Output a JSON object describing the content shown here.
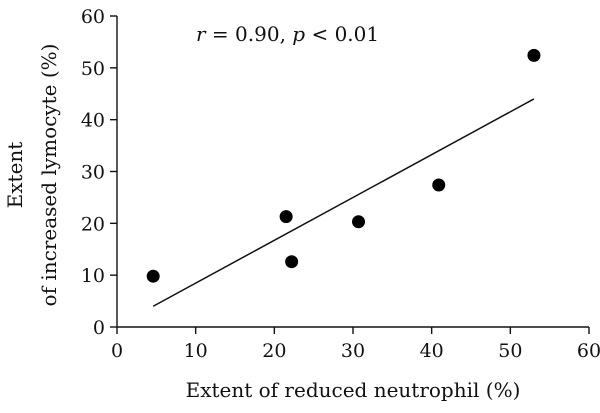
{
  "chart_data": {
    "type": "scatter",
    "xlabel": "Extent of reduced neutrophil (%)",
    "ylabel_line1": "Extent",
    "ylabel_line2": "of increased lymocyte (%)",
    "annotation": {
      "r_symbol": "r",
      "r_text": " = 0.90, ",
      "p_symbol": "p",
      "p_text": " < 0.01"
    },
    "xlim": [
      0,
      60
    ],
    "ylim": [
      0,
      60
    ],
    "x_ticks": [
      0,
      10,
      20,
      30,
      40,
      50,
      60
    ],
    "y_ticks": [
      0,
      10,
      20,
      30,
      40,
      50,
      60
    ],
    "x_tick_labels": [
      "0",
      "10",
      "20",
      "30",
      "40",
      "50",
      "60"
    ],
    "y_tick_labels": [
      "0",
      "10",
      "20",
      "30",
      "40",
      "50",
      "60"
    ],
    "points": [
      {
        "x": 4.6,
        "y": 9.8
      },
      {
        "x": 21.5,
        "y": 21.3
      },
      {
        "x": 22.2,
        "y": 12.6
      },
      {
        "x": 30.7,
        "y": 20.3
      },
      {
        "x": 40.9,
        "y": 27.4
      },
      {
        "x": 53.0,
        "y": 52.4
      }
    ],
    "fit_line": {
      "x1": 4.6,
      "y1": 4.0,
      "x2": 53.0,
      "y2": 44.0
    },
    "grid": false,
    "legend": "none"
  }
}
